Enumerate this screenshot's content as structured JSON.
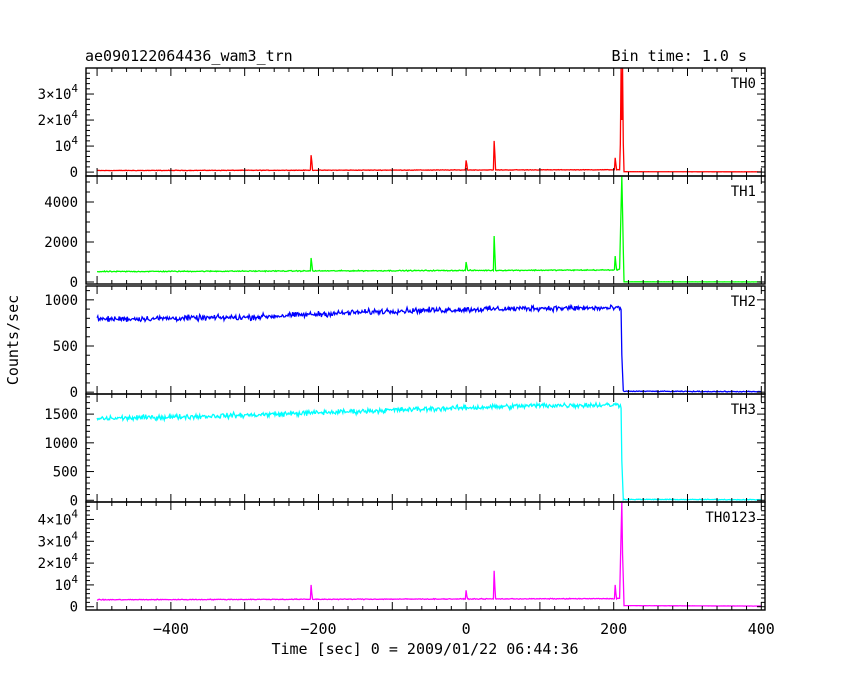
{
  "chart_data": {
    "type": "line",
    "title": "ae090122064436_wam3_trn",
    "bin_time_label": "Bin time: 1.0 s",
    "xlabel": "Time [sec] 0 = 2009/01/22 06:44:36",
    "ylabel": "Counts/sec",
    "xlim": [
      -515,
      405
    ],
    "x_ticks": [
      -400,
      -200,
      0,
      200,
      400
    ],
    "x_tick_labels": [
      "−400",
      "−200",
      "0",
      "200",
      "400"
    ],
    "panels": [
      {
        "name": "TH0",
        "color": "#ff0000",
        "ylim": [
          -1500,
          40000
        ],
        "ticks": [
          0,
          10000,
          20000,
          30000
        ],
        "tick_labels": [
          {
            "m": "0",
            "e": ""
          },
          {
            "m": "10",
            "e": "4"
          },
          {
            "m": "2×10",
            "e": "4"
          },
          {
            "m": "3×10",
            "e": "4"
          }
        ],
        "minor_step": 2000,
        "series": {
          "x_range": [
            -500,
            400
          ],
          "baseline": [
            [
              -500,
              600
            ],
            [
              208,
              900
            ],
            [
              212,
              40000
            ],
            [
              214,
              150
            ],
            [
              400,
              100
            ]
          ],
          "noise": 100,
          "spikes": [
            [
              -210,
              6500
            ],
            [
              -209,
              4000
            ],
            [
              0,
              4500
            ],
            [
              1,
              3000
            ],
            [
              38,
              12000
            ],
            [
              39,
              7000
            ],
            [
              202,
              5500
            ],
            [
              203,
              3000
            ],
            [
              210,
              40000
            ],
            [
              211,
              20000
            ],
            [
              213,
              11000
            ]
          ]
        }
      },
      {
        "name": "TH1",
        "color": "#00ff00",
        "ylim": [
          -100,
          5300
        ],
        "ticks": [
          0,
          2000,
          4000
        ],
        "tick_labels": [
          {
            "m": "0",
            "e": ""
          },
          {
            "m": "2000",
            "e": ""
          },
          {
            "m": "4000",
            "e": ""
          }
        ],
        "minor_step": 500,
        "series": {
          "x_range": [
            -500,
            400
          ],
          "baseline": [
            [
              -500,
              520
            ],
            [
              200,
              600
            ],
            [
              208,
              620
            ],
            [
              211,
              5300
            ],
            [
              214,
              10
            ],
            [
              400,
              5
            ]
          ],
          "noise": 25,
          "spikes": [
            [
              -210,
              1200
            ],
            [
              -209,
              900
            ],
            [
              0,
              1000
            ],
            [
              1,
              800
            ],
            [
              38,
              2300
            ],
            [
              39,
              1400
            ],
            [
              202,
              1300
            ],
            [
              203,
              900
            ],
            [
              213,
              1600
            ]
          ]
        }
      },
      {
        "name": "TH2",
        "color": "#0000ff",
        "ylim": [
          -20,
          1150
        ],
        "ticks": [
          0,
          500,
          1000
        ],
        "tick_labels": [
          {
            "m": "0",
            "e": ""
          },
          {
            "m": "500",
            "e": ""
          },
          {
            "m": "1000",
            "e": ""
          }
        ],
        "minor_step": 100,
        "series": {
          "x_range": [
            -500,
            400
          ],
          "baseline": [
            [
              -500,
              790
            ],
            [
              -300,
              810
            ],
            [
              -100,
              880
            ],
            [
              100,
              910
            ],
            [
              205,
              910
            ],
            [
              210,
              900
            ],
            [
              211,
              400
            ],
            [
              213,
              10
            ],
            [
              400,
              5
            ]
          ],
          "noise": 30,
          "spikes": []
        }
      },
      {
        "name": "TH3",
        "color": "#00ffff",
        "ylim": [
          -30,
          1850
        ],
        "ticks": [
          0,
          500,
          1000,
          1500
        ],
        "tick_labels": [
          {
            "m": "0",
            "e": ""
          },
          {
            "m": "500",
            "e": ""
          },
          {
            "m": "1000",
            "e": ""
          },
          {
            "m": "1500",
            "e": ""
          }
        ],
        "minor_step": 100,
        "series": {
          "x_range": [
            -500,
            400
          ],
          "baseline": [
            [
              -500,
              1420
            ],
            [
              -300,
              1480
            ],
            [
              -100,
              1570
            ],
            [
              100,
              1650
            ],
            [
              205,
              1660
            ],
            [
              210,
              1650
            ],
            [
              211,
              700
            ],
            [
              213,
              15
            ],
            [
              400,
              10
            ]
          ],
          "noise": 45,
          "spikes": []
        }
      },
      {
        "name": "TH0123",
        "color": "#ff00ff",
        "ylim": [
          -1500,
          48000
        ],
        "ticks": [
          0,
          10000,
          20000,
          30000,
          40000
        ],
        "tick_labels": [
          {
            "m": "0",
            "e": ""
          },
          {
            "m": "10",
            "e": "4"
          },
          {
            "m": "2×10",
            "e": "4"
          },
          {
            "m": "3×10",
            "e": "4"
          },
          {
            "m": "4×10",
            "e": "4"
          }
        ],
        "minor_step": 2000,
        "series": {
          "x_range": [
            -500,
            400
          ],
          "baseline": [
            [
              -500,
              3200
            ],
            [
              200,
              3700
            ],
            [
              208,
              3800
            ],
            [
              211,
              48000
            ],
            [
              213,
              500
            ],
            [
              400,
              300
            ]
          ],
          "noise": 180,
          "spikes": [
            [
              -210,
              10000
            ],
            [
              -209,
              6000
            ],
            [
              0,
              7500
            ],
            [
              1,
              5000
            ],
            [
              38,
              16500
            ],
            [
              39,
              9000
            ],
            [
              202,
              10000
            ],
            [
              203,
              6000
            ],
            [
              213,
              13000
            ]
          ]
        }
      }
    ]
  }
}
